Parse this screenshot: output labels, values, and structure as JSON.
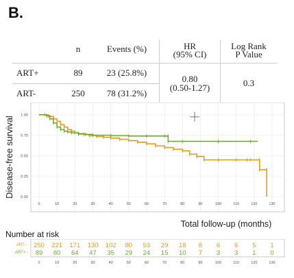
{
  "panel_label": "B.",
  "table": {
    "headers": {
      "n": "n",
      "events": "Events (%)",
      "hr_line1": "HR",
      "hr_line2": "(95% CI)",
      "lr_line1": "Log Rank",
      "lr_line2": "P Value"
    },
    "rows": [
      {
        "group": "ART+",
        "n": "89",
        "events": "23 (25.8%)"
      },
      {
        "group": "ART-",
        "n": "250",
        "events": "78 (31.2%)"
      }
    ],
    "hr_line1": "0.80",
    "hr_line2": "(0.50-1.27)",
    "p_value": "0.3"
  },
  "chart_data": {
    "type": "line",
    "ylabel": "Disease-free survival",
    "xlabel": "Total follow-up (months)",
    "xlim": [
      0,
      130
    ],
    "ylim": [
      0,
      1
    ],
    "x_ticks": [
      "0",
      "10",
      "20",
      "30",
      "40",
      "50",
      "60",
      "70",
      "80",
      "90",
      "100",
      "110",
      "120",
      "130"
    ],
    "y_ticks": [
      "0.00",
      "0.25",
      "0.50",
      "0.75",
      "1.00"
    ],
    "grid": true,
    "series": [
      {
        "name": "ART-",
        "color": "#e89a1c",
        "points": [
          [
            0,
            1.0
          ],
          [
            3,
            1.0
          ],
          [
            5,
            0.98
          ],
          [
            8,
            0.95
          ],
          [
            10,
            0.92
          ],
          [
            12,
            0.88
          ],
          [
            14,
            0.85
          ],
          [
            16,
            0.82
          ],
          [
            18,
            0.8
          ],
          [
            20,
            0.78
          ],
          [
            22,
            0.77
          ],
          [
            25,
            0.76
          ],
          [
            28,
            0.745
          ],
          [
            32,
            0.735
          ],
          [
            36,
            0.725
          ],
          [
            40,
            0.715
          ],
          [
            45,
            0.7
          ],
          [
            50,
            0.685
          ],
          [
            55,
            0.665
          ],
          [
            60,
            0.645
          ],
          [
            65,
            0.62
          ],
          [
            70,
            0.6
          ],
          [
            75,
            0.58
          ],
          [
            80,
            0.56
          ],
          [
            84,
            0.52
          ],
          [
            88,
            0.49
          ],
          [
            92,
            0.45
          ],
          [
            100,
            0.45
          ],
          [
            110,
            0.45
          ],
          [
            116,
            0.45
          ],
          [
            118,
            0.45
          ],
          [
            123,
            0.45
          ],
          [
            123,
            0.33
          ],
          [
            127,
            0.33
          ],
          [
            127,
            0.0
          ]
        ]
      },
      {
        "name": "ART+",
        "color": "#6fac2c",
        "points": [
          [
            0,
            1.0
          ],
          [
            4,
            0.99
          ],
          [
            6,
            0.95
          ],
          [
            8,
            0.9
          ],
          [
            10,
            0.85
          ],
          [
            12,
            0.82
          ],
          [
            14,
            0.8
          ],
          [
            16,
            0.79
          ],
          [
            18,
            0.78
          ],
          [
            22,
            0.765
          ],
          [
            26,
            0.76
          ],
          [
            30,
            0.75
          ],
          [
            40,
            0.745
          ],
          [
            50,
            0.74
          ],
          [
            60,
            0.74
          ],
          [
            70,
            0.74
          ],
          [
            72,
            0.74
          ],
          [
            72,
            0.675
          ],
          [
            80,
            0.675
          ],
          [
            100,
            0.675
          ],
          [
            118,
            0.675
          ],
          [
            122,
            0.675
          ]
        ]
      }
    ]
  },
  "risk_table": {
    "title": "Number at risk",
    "rows": [
      {
        "label": "ART-",
        "color": "#e89a1c",
        "values": [
          "250",
          "221",
          "171",
          "130",
          "102",
          "80",
          "53",
          "29",
          "18",
          "8",
          "6",
          "6",
          "5",
          "1"
        ]
      },
      {
        "label": "ART+",
        "color": "#6fac2c",
        "values": [
          "89",
          "80",
          "64",
          "47",
          "35",
          "29",
          "24",
          "15",
          "10",
          "7",
          "3",
          "3",
          "1",
          "0"
        ]
      }
    ],
    "x_ticks": [
      "0",
      "10",
      "20",
      "30",
      "40",
      "50",
      "60",
      "70",
      "80",
      "90",
      "100",
      "110",
      "120",
      "130"
    ]
  }
}
